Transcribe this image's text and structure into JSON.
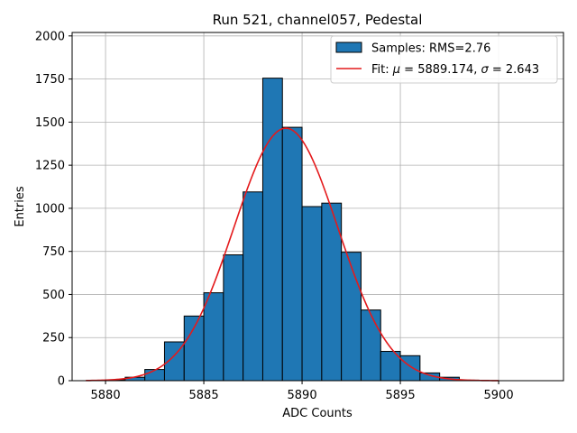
{
  "chart_data": {
    "type": "bar",
    "title": "Run 521, channel057, Pedestal",
    "xlabel": "ADC Counts",
    "ylabel": "Entries",
    "xlim": [
      5878.3,
      5903.3
    ],
    "ylim": [
      0,
      2020
    ],
    "bin_width": 1,
    "bins": [
      {
        "left": 5880,
        "count": 5
      },
      {
        "left": 5881,
        "count": 20
      },
      {
        "left": 5882,
        "count": 65
      },
      {
        "left": 5883,
        "count": 225
      },
      {
        "left": 5884,
        "count": 375
      },
      {
        "left": 5885,
        "count": 510
      },
      {
        "left": 5886,
        "count": 730
      },
      {
        "left": 5887,
        "count": 1095
      },
      {
        "left": 5888,
        "count": 1755
      },
      {
        "left": 5889,
        "count": 1470
      },
      {
        "left": 5890,
        "count": 1010
      },
      {
        "left": 5891,
        "count": 1030
      },
      {
        "left": 5892,
        "count": 745
      },
      {
        "left": 5893,
        "count": 410
      },
      {
        "left": 5894,
        "count": 170
      },
      {
        "left": 5895,
        "count": 145
      },
      {
        "left": 5896,
        "count": 45
      },
      {
        "left": 5897,
        "count": 20
      },
      {
        "left": 5898,
        "count": 3
      }
    ],
    "fit": {
      "mu": 5889.174,
      "sigma": 2.643,
      "amplitude": 1465,
      "x_range": [
        5879,
        5900
      ]
    },
    "xticks": [
      5880,
      5885,
      5890,
      5895,
      5900
    ],
    "xtick_labels": [
      "5880",
      "5885",
      "5890",
      "5895",
      "5900"
    ],
    "yticks": [
      0,
      250,
      500,
      750,
      1000,
      1250,
      1500,
      1750,
      2000
    ],
    "ytick_labels": [
      "0",
      "250",
      "500",
      "750",
      "1000",
      "1250",
      "1500",
      "1750",
      "2000"
    ],
    "grid": true,
    "legend_position": "top-right",
    "legend": [
      {
        "label": "Samples: RMS=2.76",
        "kind": "patch"
      },
      {
        "label_prefix": "Fit: ",
        "mu_symbol": "μ",
        "mu_text": " = 5889.174, ",
        "sigma_symbol": "σ",
        "sigma_text": " = 2.643",
        "kind": "line"
      }
    ],
    "colors": {
      "bar_fill": "#1f77b4",
      "bar_edge": "#000000",
      "fit_line": "#e41a1c",
      "grid": "#b0b0b0"
    }
  }
}
